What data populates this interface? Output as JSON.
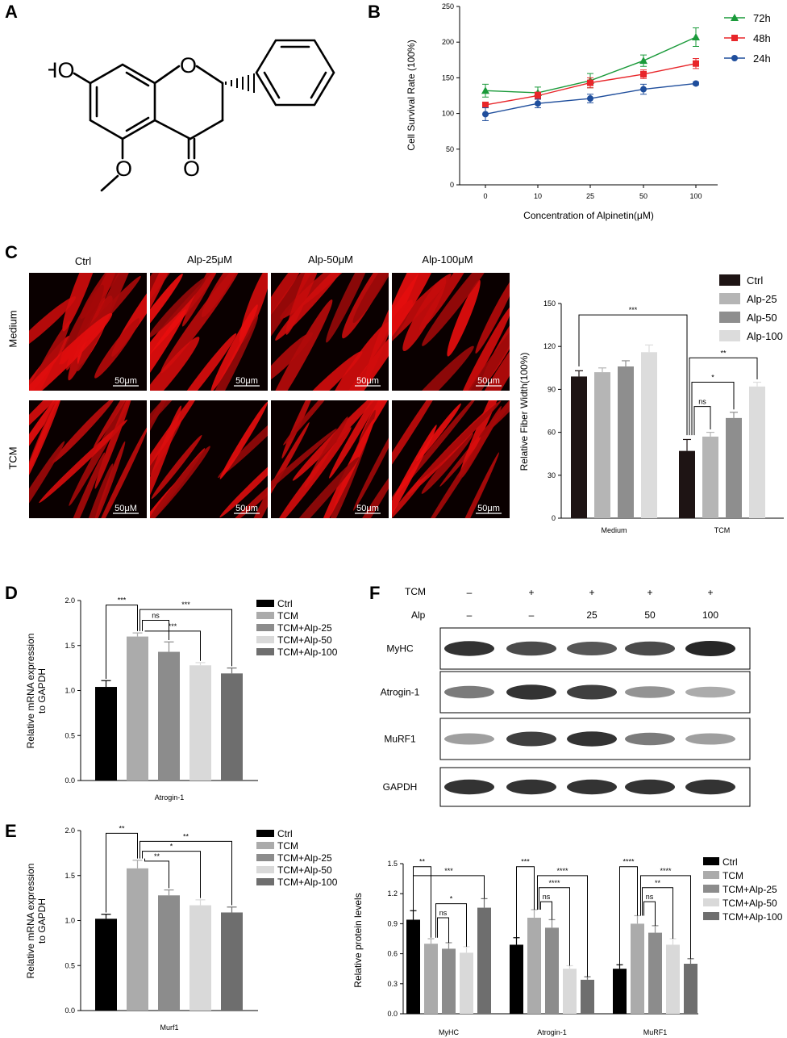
{
  "panels": {
    "A": "A",
    "B": "B",
    "C": "C",
    "D": "D",
    "E": "E",
    "F": "F"
  },
  "structure": {
    "atoms": {
      "ho": "HO",
      "o_ring": "O",
      "o_ketone": "O",
      "o_methoxy": "O"
    }
  },
  "chart_data": [
    {
      "id": "B",
      "type": "line",
      "xlabel": "Concentration of Alpinetin(μM)",
      "ylabel": "Cell Survival Rate (100%)",
      "categories": [
        "0",
        "10",
        "25",
        "50",
        "100"
      ],
      "ylim": [
        0,
        250
      ],
      "yticks": [
        0,
        50,
        100,
        150,
        200,
        250
      ],
      "series": [
        {
          "name": "72h",
          "color": "#1a9a3a",
          "marker": "triangle",
          "values": [
            132,
            129,
            146,
            174,
            207
          ],
          "errors": [
            9,
            8,
            10,
            8,
            13
          ]
        },
        {
          "name": "48h",
          "color": "#e8262a",
          "marker": "square",
          "values": [
            112,
            125,
            143,
            155,
            170
          ],
          "errors": [
            4,
            5,
            7,
            6,
            7
          ]
        },
        {
          "name": "24h",
          "color": "#1f4e9c",
          "marker": "circle",
          "values": [
            99,
            114,
            121,
            134,
            142
          ],
          "errors": [
            9,
            6,
            6,
            7,
            2
          ]
        }
      ]
    },
    {
      "id": "C",
      "type": "bar",
      "ylabel": "Relative Fiber Width(100%)",
      "groups": [
        "Medium",
        "TCM"
      ],
      "ylim": [
        0,
        150
      ],
      "yticks": [
        0,
        30,
        60,
        90,
        120,
        150
      ],
      "series": [
        {
          "name": "Ctrl",
          "color": "#1e1414",
          "values": [
            99,
            47
          ],
          "errors": [
            4,
            8
          ]
        },
        {
          "name": "Alp-25",
          "color": "#b5b5b5",
          "values": [
            102,
            57
          ],
          "errors": [
            3,
            3
          ]
        },
        {
          "name": "Alp-50",
          "color": "#8e8e8e",
          "values": [
            106,
            70
          ],
          "errors": [
            4,
            4
          ]
        },
        {
          "name": "Alp-100",
          "color": "#dcdcdc",
          "values": [
            116,
            92
          ],
          "errors": [
            5,
            3
          ]
        }
      ],
      "annotations": [
        "***",
        "**",
        "*",
        "ns"
      ]
    },
    {
      "id": "D",
      "type": "bar",
      "ylabel": "Relative mRNA expression to GAPDH",
      "xlabel": "Atrogin-1",
      "ylim": [
        0,
        2.0
      ],
      "yticks": [
        "0.0",
        "0.5",
        "1.0",
        "1.5",
        "2.0"
      ],
      "series": [
        {
          "name": "Ctrl",
          "color": "#000000",
          "value": 1.04,
          "error": 0.07
        },
        {
          "name": "TCM",
          "color": "#ababab",
          "value": 1.6,
          "error": 0.04
        },
        {
          "name": "TCM+Alp-25",
          "color": "#8c8c8c",
          "value": 1.43,
          "error": 0.11
        },
        {
          "name": "TCM+Alp-50",
          "color": "#d9d9d9",
          "value": 1.28,
          "error": 0.03
        },
        {
          "name": "TCM+Alp-100",
          "color": "#6e6e6e",
          "value": 1.19,
          "error": 0.06
        }
      ],
      "annotations": [
        "***",
        "***",
        "ns",
        "***"
      ]
    },
    {
      "id": "E",
      "type": "bar",
      "ylabel": "Relative mRNA expression to GAPDH",
      "xlabel": "Murf1",
      "ylim": [
        0,
        2.0
      ],
      "yticks": [
        "0.0",
        "0.5",
        "1.0",
        "1.5",
        "2.0"
      ],
      "series": [
        {
          "name": "Ctrl",
          "color": "#000000",
          "value": 1.02,
          "error": 0.05
        },
        {
          "name": "TCM",
          "color": "#ababab",
          "value": 1.58,
          "error": 0.09
        },
        {
          "name": "TCM+Alp-25",
          "color": "#8c8c8c",
          "value": 1.28,
          "error": 0.06
        },
        {
          "name": "TCM+Alp-50",
          "color": "#d9d9d9",
          "value": 1.17,
          "error": 0.06
        },
        {
          "name": "TCM+Alp-100",
          "color": "#6e6e6e",
          "value": 1.09,
          "error": 0.06
        }
      ],
      "annotations": [
        "**",
        "**",
        "*",
        "**"
      ]
    },
    {
      "id": "F",
      "type": "bar",
      "ylabel": "Relative protein levels",
      "groups": [
        "MyHC",
        "Atrogin-1",
        "MuRF1"
      ],
      "ylim": [
        0,
        1.5
      ],
      "yticks": [
        "0.0",
        "0.3",
        "0.6",
        "0.9",
        "1.2",
        "1.5"
      ],
      "series": [
        {
          "name": "Ctrl",
          "color": "#000000",
          "values": [
            0.94,
            0.69,
            0.45
          ],
          "errors": [
            0.09,
            0.07,
            0.04
          ]
        },
        {
          "name": "TCM",
          "color": "#ababab",
          "values": [
            0.7,
            0.96,
            0.9
          ],
          "errors": [
            0.05,
            0.08,
            0.08
          ]
        },
        {
          "name": "TCM+Alp-25",
          "color": "#8c8c8c",
          "values": [
            0.65,
            0.86,
            0.81
          ],
          "errors": [
            0.06,
            0.08,
            0.07
          ]
        },
        {
          "name": "TCM+Alp-50",
          "color": "#d9d9d9",
          "values": [
            0.61,
            0.45,
            0.69
          ],
          "errors": [
            0.06,
            0.03,
            0.06
          ]
        },
        {
          "name": "TCM+Alp-100",
          "color": "#6e6e6e",
          "values": [
            1.06,
            0.34,
            0.5
          ],
          "errors": [
            0.09,
            0.03,
            0.05
          ]
        }
      ],
      "annotations": [
        "**",
        "***",
        "*",
        "ns",
        "***",
        "****",
        "****",
        "ns",
        "****",
        "****",
        "**",
        "ns"
      ]
    }
  ],
  "micrographs": {
    "columns": [
      "Ctrl",
      "Alp-25μM",
      "Alp-50μM",
      "Alp-100μM"
    ],
    "rows": [
      "Medium",
      "TCM"
    ],
    "scale_labels": [
      "50μm",
      "50μm",
      "50μm",
      "50μm",
      "50μM",
      "50μm",
      "50μm",
      "50μm"
    ]
  },
  "western_blot": {
    "tcm_label": "TCM",
    "alp_label": "Alp",
    "tcm_row": [
      "–",
      "+",
      "+",
      "+",
      "+"
    ],
    "alp_row": [
      "–",
      "–",
      "25",
      "50",
      "100"
    ],
    "bands": [
      "MyHC",
      "Atrogin-1",
      "MuRF1",
      "GAPDH"
    ],
    "band_intensity": [
      [
        0.85,
        0.75,
        0.7,
        0.75,
        0.9
      ],
      [
        0.55,
        0.85,
        0.8,
        0.45,
        0.35
      ],
      [
        0.4,
        0.8,
        0.85,
        0.55,
        0.4
      ],
      [
        0.85,
        0.85,
        0.85,
        0.85,
        0.85
      ]
    ]
  }
}
